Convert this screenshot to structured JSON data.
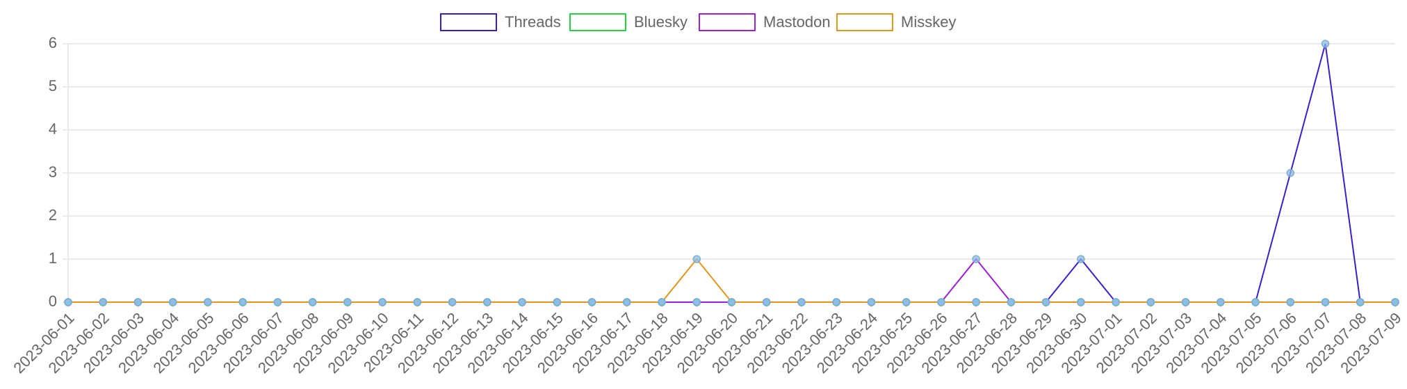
{
  "chart_data": {
    "type": "line",
    "categories": [
      "2023-06-01",
      "2023-06-02",
      "2023-06-03",
      "2023-06-04",
      "2023-06-05",
      "2023-06-06",
      "2023-06-07",
      "2023-06-08",
      "2023-06-09",
      "2023-06-10",
      "2023-06-11",
      "2023-06-12",
      "2023-06-13",
      "2023-06-14",
      "2023-06-15",
      "2023-06-16",
      "2023-06-17",
      "2023-06-18",
      "2023-06-19",
      "2023-06-20",
      "2023-06-21",
      "2023-06-22",
      "2023-06-23",
      "2023-06-24",
      "2023-06-25",
      "2023-06-26",
      "2023-06-27",
      "2023-06-28",
      "2023-06-29",
      "2023-06-30",
      "2023-07-01",
      "2023-07-02",
      "2023-07-03",
      "2023-07-04",
      "2023-07-05",
      "2023-07-06",
      "2023-07-07",
      "2023-07-08",
      "2023-07-09"
    ],
    "series": [
      {
        "name": "Threads",
        "color": "#3a1fc9",
        "values": [
          0,
          0,
          0,
          0,
          0,
          0,
          0,
          0,
          0,
          0,
          0,
          0,
          0,
          0,
          0,
          0,
          0,
          0,
          0,
          0,
          0,
          0,
          0,
          0,
          0,
          0,
          0,
          0,
          0,
          1,
          0,
          0,
          0,
          0,
          0,
          3,
          6,
          0,
          0
        ]
      },
      {
        "name": "Bluesky",
        "color": "#2ecc40",
        "values": [
          0,
          0,
          0,
          0,
          0,
          0,
          0,
          0,
          0,
          0,
          0,
          0,
          0,
          0,
          0,
          0,
          0,
          0,
          0,
          0,
          0,
          0,
          0,
          0,
          0,
          0,
          0,
          0,
          0,
          0,
          0,
          0,
          0,
          0,
          0,
          0,
          0,
          0,
          0
        ]
      },
      {
        "name": "Mastodon",
        "color": "#9b1fd6",
        "values": [
          0,
          0,
          0,
          0,
          0,
          0,
          0,
          0,
          0,
          0,
          0,
          0,
          0,
          0,
          0,
          0,
          0,
          0,
          0,
          0,
          0,
          0,
          0,
          0,
          0,
          0,
          1,
          0,
          0,
          0,
          0,
          0,
          0,
          0,
          0,
          0,
          0,
          0,
          0
        ]
      },
      {
        "name": "Misskey",
        "color": "#e0961c",
        "values": [
          0,
          0,
          0,
          0,
          0,
          0,
          0,
          0,
          0,
          0,
          0,
          0,
          0,
          0,
          0,
          0,
          0,
          0,
          1,
          0,
          0,
          0,
          0,
          0,
          0,
          0,
          0,
          0,
          0,
          0,
          0,
          0,
          0,
          0,
          0,
          0,
          0,
          0,
          0
        ]
      }
    ],
    "ylim": [
      0,
      6
    ],
    "yticks": [
      0,
      1,
      2,
      3,
      4,
      5,
      6
    ],
    "grid": true,
    "legend": "top"
  }
}
